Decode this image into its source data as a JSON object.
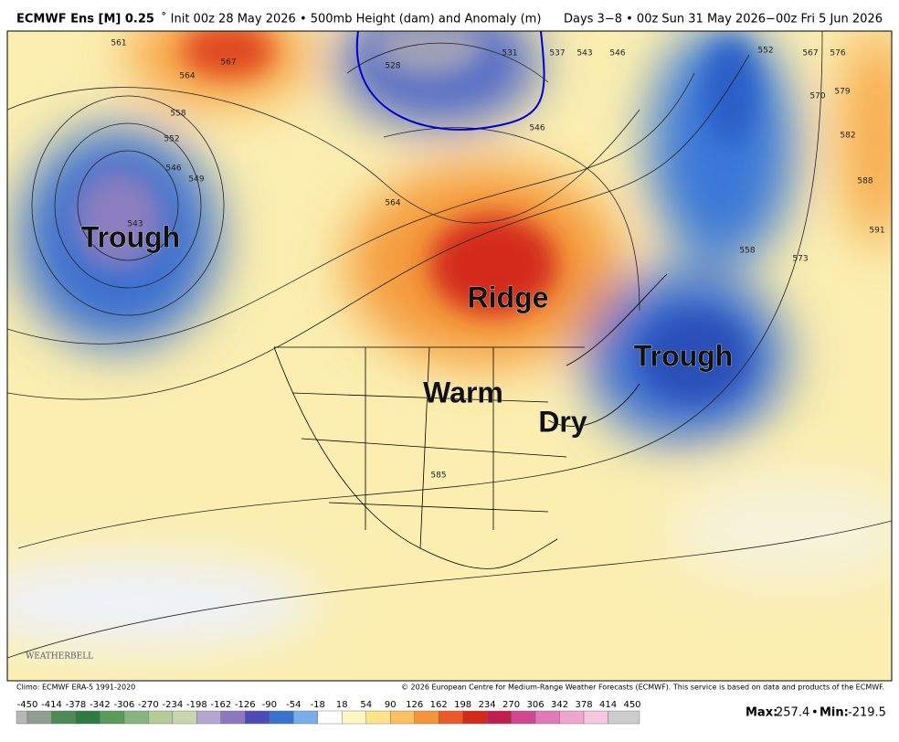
{
  "header": {
    "title_bold": "ECMWF Ens [M] 0.25",
    "title_rest": "˚ Init 00z 28 May 2026 • 500mb Height (dam) and Anomaly (m)",
    "valid": "Days 3−8 • 00z Sun 31 May 2026−00z Fri 5 Jun 2026"
  },
  "map": {
    "labels": [
      "Trough",
      "Ridge",
      "Warm",
      "Dry",
      "Trough"
    ],
    "contour_labels": [
      "561",
      "567",
      "564",
      "558",
      "552",
      "546",
      "549",
      "543",
      "546",
      "564",
      "537",
      "543",
      "546",
      "552",
      "567",
      "576",
      "570",
      "579",
      "582",
      "588",
      "591",
      "573",
      "558",
      "585",
      "531",
      "528"
    ],
    "watermark": "WEATHERBELL"
  },
  "footer": {
    "climo": "Climo: ECMWF ERA-5 1991-2020",
    "copyright": "© 2026 European Centre for Medium-Range Weather Forecasts (ECMWF). This service is based on data and products of the ECMWF.",
    "max_label": "Max:",
    "max_value": "257.4",
    "sep": "•",
    "min_label": "Min:",
    "min_value": "-219.5"
  },
  "colorbar": {
    "labels": [
      "-450",
      "-414",
      "-378",
      "-342",
      "-306",
      "-270",
      "-234",
      "-198",
      "-162",
      "-126",
      "-90",
      "-54",
      "-18",
      "18",
      "54",
      "90",
      "126",
      "162",
      "198",
      "234",
      "270",
      "306",
      "342",
      "378",
      "414",
      "450"
    ]
  }
}
